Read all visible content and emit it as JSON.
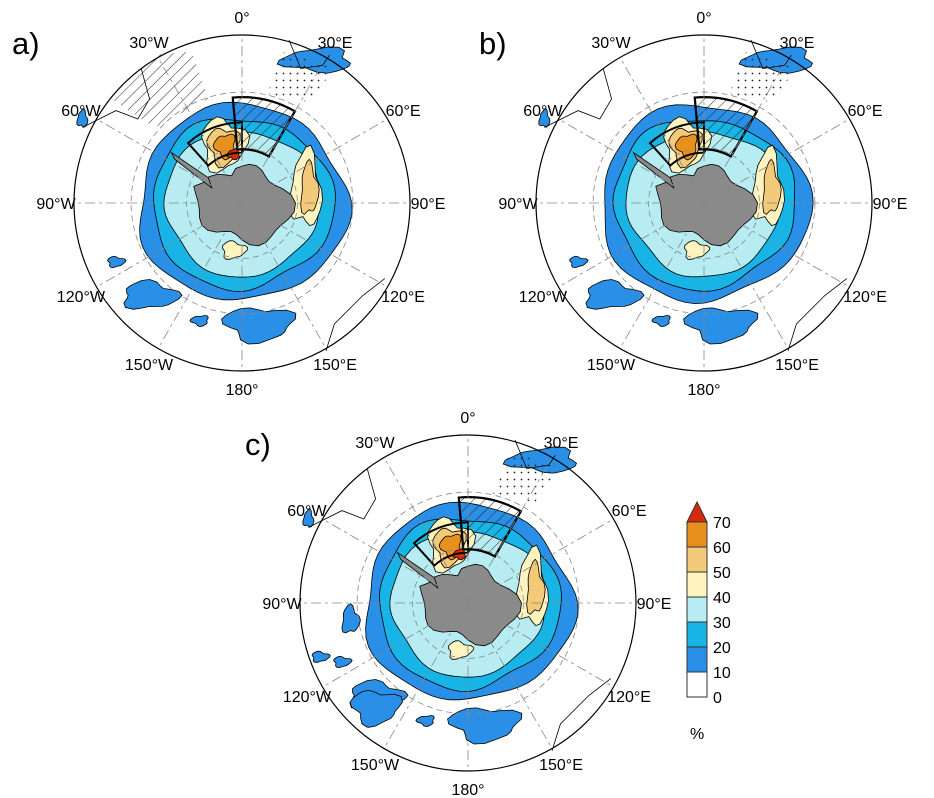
{
  "figure": {
    "panels": [
      {
        "letter": "a)"
      },
      {
        "letter": "b)"
      },
      {
        "letter": "c)"
      }
    ],
    "longitude_labels": [
      "0°",
      "30°E",
      "60°E",
      "90°E",
      "120°E",
      "150°E",
      "180°",
      "150°W",
      "120°W",
      "90°W",
      "60°W",
      "30°W"
    ],
    "colorbar": {
      "ticks": [
        "0",
        "10",
        "20",
        "30",
        "40",
        "50",
        "60",
        "70"
      ],
      "unit": "%",
      "colors": [
        "#ffffff",
        "#2a8fe6",
        "#18b4e6",
        "#b6ecf2",
        "#fff4c0",
        "#f3c97a",
        "#e8901e",
        "#d62a0c"
      ]
    }
  }
}
